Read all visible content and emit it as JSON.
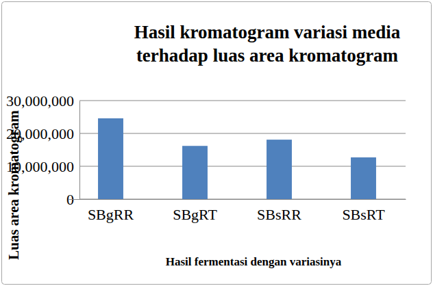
{
  "chart_data": {
    "type": "bar",
    "title": "Hasil kromatogram variasi media terhadap luas area kromatogram",
    "x_label": "Hasil fermentasi dengan variasinya",
    "y_label": "Luas area kromatogram",
    "categories": [
      "SBgRR",
      "SBgRT",
      "SBsRR",
      "SBsRT"
    ],
    "values": [
      24600000,
      16200000,
      18100000,
      12700000
    ],
    "color": "#4f81bd",
    "ylim": [
      0,
      30000000
    ],
    "yticks": [
      0,
      {
        "value": 10000000,
        "label": "10,000,000"
      },
      {
        "value": 20000000,
        "label": "20,000,000"
      },
      {
        "value": 30000000,
        "label": "30,000,000"
      }
    ],
    "grid": true
  }
}
